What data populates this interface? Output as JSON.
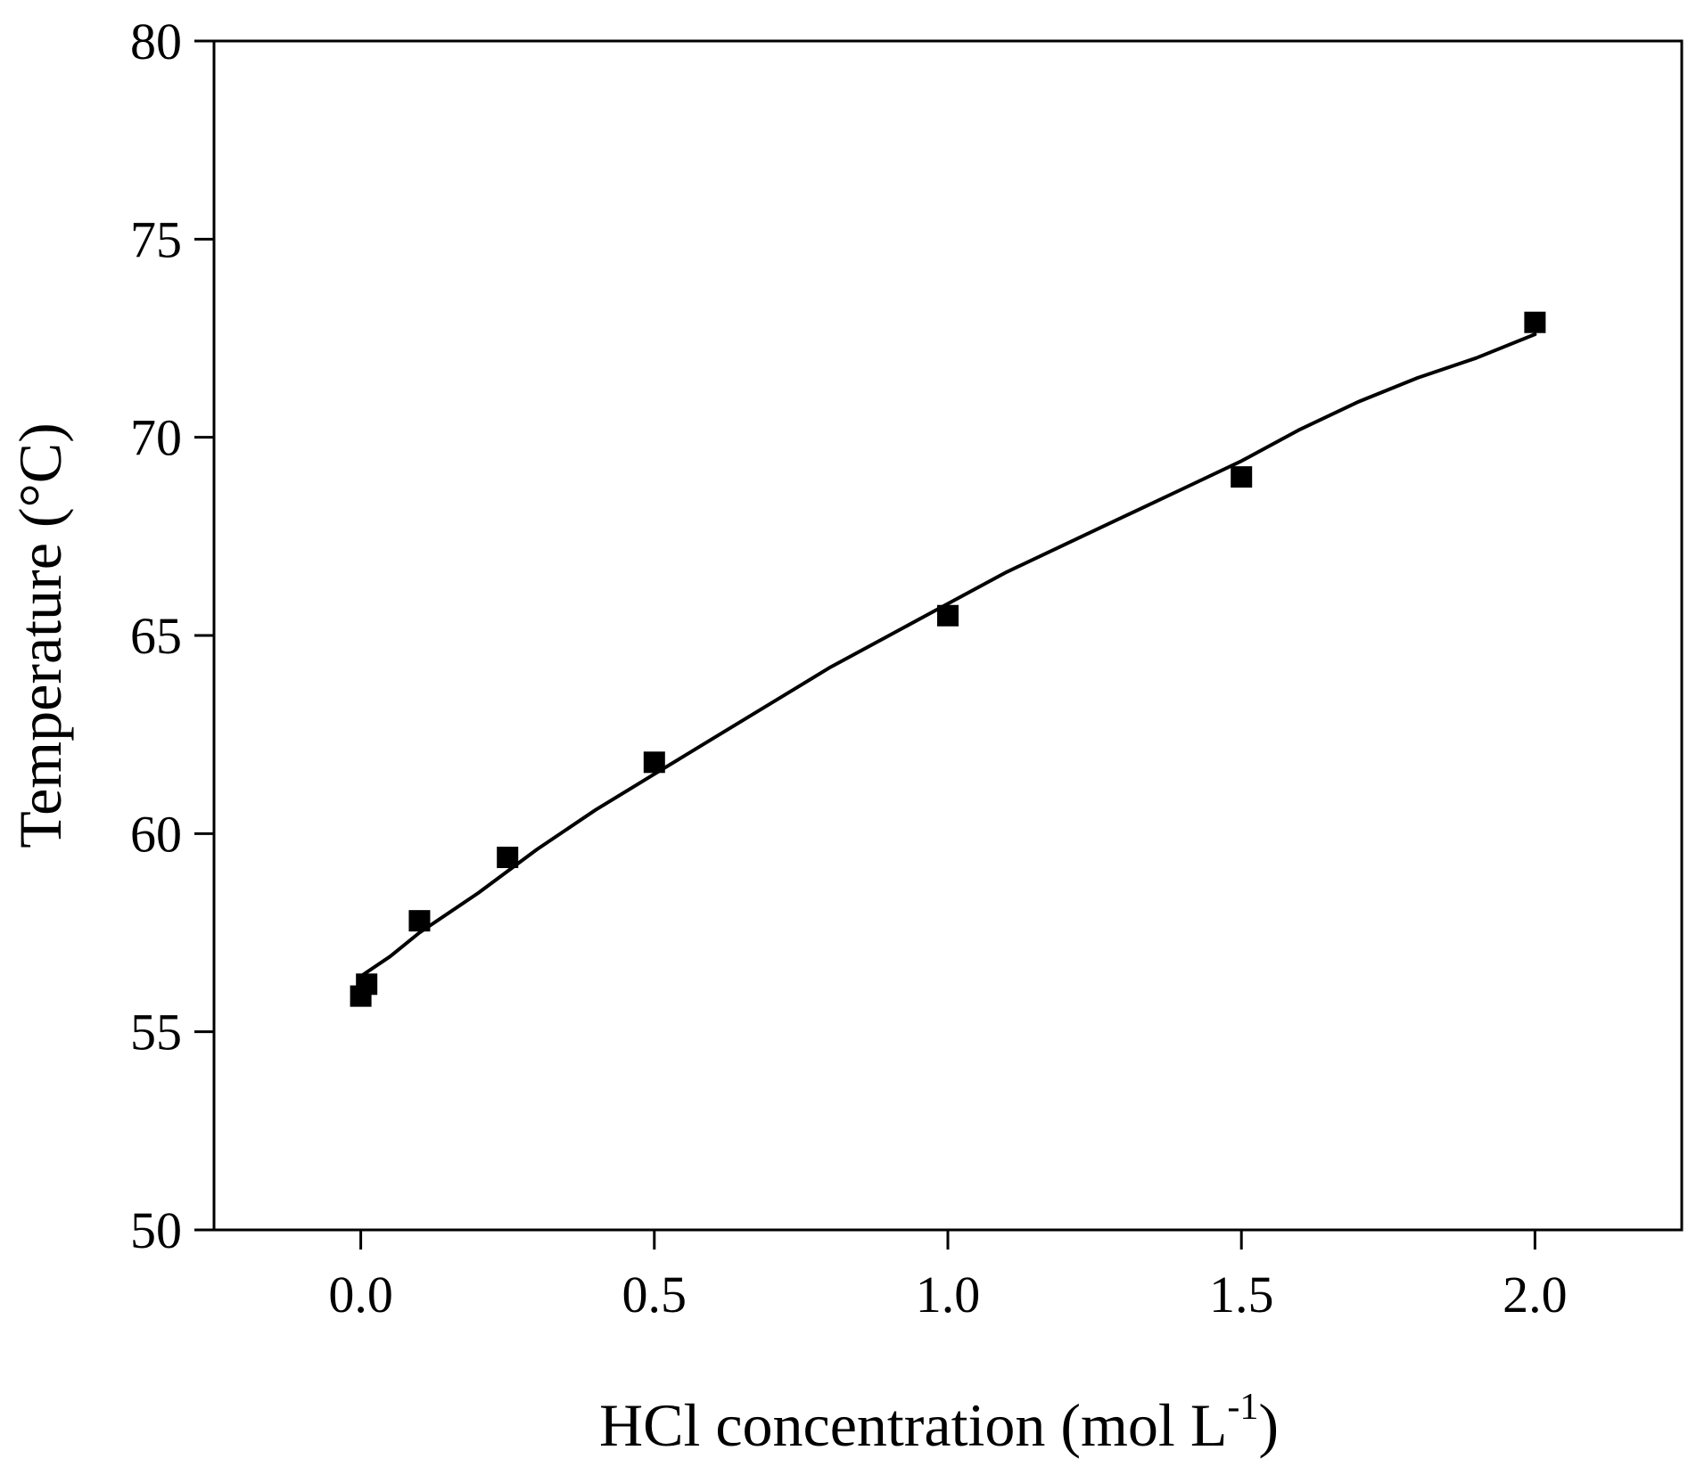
{
  "chart_data": {
    "type": "scatter",
    "title": "",
    "xlabel": "HCl concentration (mol L",
    "xlabel_superscript": "-1",
    "xlabel_suffix": ")",
    "ylabel": "Temperature (°C)",
    "xlim": [
      -0.25,
      2.25
    ],
    "ylim": [
      50,
      80
    ],
    "xticks": [
      0.0,
      0.5,
      1.0,
      1.5,
      2.0
    ],
    "xtick_labels": [
      "0.0",
      "0.5",
      "1.0",
      "1.5",
      "2.0"
    ],
    "yticks": [
      50,
      55,
      60,
      65,
      70,
      75,
      80
    ],
    "ytick_labels": [
      "50",
      "55",
      "60",
      "65",
      "70",
      "75",
      "80"
    ],
    "grid": false,
    "legend": "none",
    "series": [
      {
        "type": "scatter",
        "marker": "square",
        "color": "#000000",
        "x": [
          0.0,
          0.01,
          0.1,
          0.25,
          0.5,
          1.0,
          1.5,
          2.0
        ],
        "y": [
          55.9,
          56.2,
          57.8,
          59.4,
          61.8,
          65.5,
          69.0,
          72.9
        ]
      },
      {
        "type": "line",
        "color": "#000000",
        "x": [
          0.0,
          0.05,
          0.1,
          0.2,
          0.3,
          0.4,
          0.5,
          0.6,
          0.7,
          0.8,
          0.9,
          1.0,
          1.1,
          1.2,
          1.3,
          1.4,
          1.5,
          1.6,
          1.7,
          1.8,
          1.9,
          2.0
        ],
        "y": [
          56.4,
          56.9,
          57.5,
          58.5,
          59.6,
          60.6,
          61.5,
          62.4,
          63.3,
          64.2,
          65.0,
          65.8,
          66.6,
          67.3,
          68.0,
          68.7,
          69.4,
          70.2,
          70.9,
          71.5,
          72.0,
          72.6
        ]
      }
    ]
  }
}
